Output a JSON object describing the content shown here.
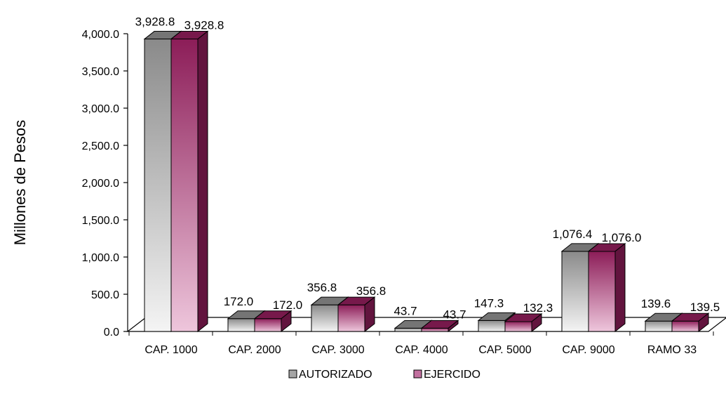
{
  "chart_data": {
    "type": "bar",
    "title": "",
    "xlabel": "",
    "ylabel": "Millones de Pesos",
    "ylim": [
      0,
      4000
    ],
    "yticks": [
      0,
      500,
      1000,
      1500,
      2000,
      2500,
      3000,
      3500,
      4000
    ],
    "ytick_labels": [
      "0.0",
      "500.0",
      "1,000.0",
      "1,500.0",
      "2,000.0",
      "2,500.0",
      "3,000.0",
      "3,500.0",
      "4,000.0"
    ],
    "categories": [
      "CAP. 1000",
      "CAP. 2000",
      "CAP. 3000",
      "CAP. 4000",
      "CAP. 5000",
      "CAP. 9000",
      "RAMO 33"
    ],
    "series": [
      {
        "name": "AUTORIZADO",
        "values": [
          3928.8,
          172.0,
          356.8,
          43.7,
          147.3,
          1076.4,
          139.6
        ],
        "labels": [
          "3,928.8",
          "172.0",
          "356.8",
          "43.7",
          "147.3",
          "1,076.4",
          "139.6"
        ],
        "color_light": "#f4f4f4",
        "color_dark": "#8a8a8a",
        "legend_color": "#a6a6a6"
      },
      {
        "name": "EJERCIDO",
        "values": [
          3928.8,
          172.0,
          356.8,
          43.7,
          132.3,
          1076.0,
          139.5
        ],
        "labels": [
          "3,928.8",
          "172.0",
          "356.8",
          "43.7",
          "132.3",
          "1,076.0",
          "139.5"
        ],
        "color_light": "#eec6dc",
        "color_dark": "#8c1d58",
        "legend_color": "#c2709f"
      }
    ],
    "grid": false,
    "legend_position": "bottom",
    "style": "3d-column"
  }
}
